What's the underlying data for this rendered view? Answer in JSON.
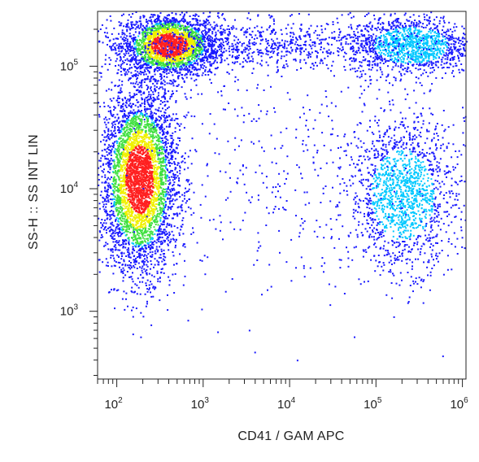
{
  "chart_data": {
    "type": "scatter",
    "subtype": "flow-cytometry-density-dot-plot",
    "title": "",
    "xlabel": "CD41 / GAM APC",
    "ylabel": "SS-H :: SS INT LIN",
    "x_scale": "log",
    "y_scale": "log",
    "xlim": [
      60,
      1100000
    ],
    "ylim": [
      280,
      280000
    ],
    "x_ticks": [
      {
        "base": "10",
        "exp": "2",
        "value": 100
      },
      {
        "base": "10",
        "exp": "3",
        "value": 1000
      },
      {
        "base": "10",
        "exp": "4",
        "value": 10000
      },
      {
        "base": "10",
        "exp": "5",
        "value": 100000
      },
      {
        "base": "10",
        "exp": "6",
        "value": 1000000
      }
    ],
    "y_ticks": [
      {
        "base": "10",
        "exp": "3",
        "value": 1000
      },
      {
        "base": "10",
        "exp": "4",
        "value": 10000
      },
      {
        "base": "10",
        "exp": "5",
        "value": 100000
      }
    ],
    "grid": false,
    "colormap": [
      "#1a1aff",
      "#00c8ff",
      "#40e040",
      "#f0f000",
      "#ff2020"
    ],
    "populations": [
      {
        "x_center": 400,
        "y_center": 150000,
        "x_spread": 0.28,
        "y_spread": 0.13,
        "count": 2600,
        "peak_color": "#ff2020"
      },
      {
        "x_center": 180,
        "y_center": 12000,
        "x_spread": 0.22,
        "y_spread": 0.38,
        "count": 4200,
        "peak_color": "#ff2020"
      },
      {
        "x_center": 250000,
        "y_center": 150000,
        "x_spread": 0.35,
        "y_spread": 0.12,
        "count": 1300,
        "peak_color": "#00c8ff"
      },
      {
        "x_center": 200000,
        "y_center": 9000,
        "x_spread": 0.3,
        "y_spread": 0.3,
        "count": 1500,
        "peak_color": "#00c8ff"
      },
      {
        "x_center": 5000,
        "y_center": 150000,
        "x_spread": 1.0,
        "y_spread": 0.1,
        "count": 900,
        "peak_color": "#1a1aff"
      },
      {
        "x_center": 10000,
        "y_center": 15000,
        "x_spread": 1.2,
        "y_spread": 0.55,
        "count": 550,
        "peak_color": "#1a1aff"
      }
    ]
  }
}
